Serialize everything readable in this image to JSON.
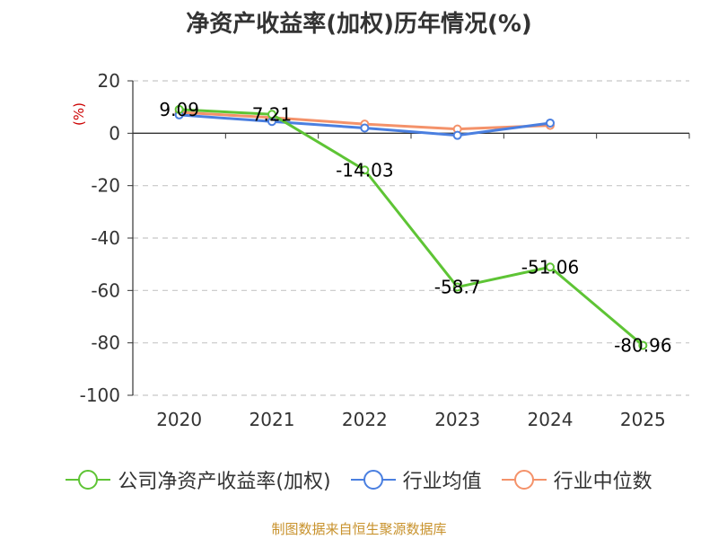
{
  "title": "净资产收益率(加权)历年情况(%)",
  "source": "制图数据来自恒生聚源数据库",
  "colors": {
    "company": "#5ec435",
    "avg": "#4a7fe0",
    "median": "#f4926a",
    "grid": "#c8c8c8",
    "axis": "#333333",
    "unit": "#cc0000",
    "source": "#c8922c"
  },
  "chart_data": {
    "type": "line",
    "title": "净资产收益率(加权)历年情况(%)",
    "ylabel": "(%)",
    "categories": [
      "2020",
      "2021",
      "2022",
      "2023",
      "2024",
      "2025"
    ],
    "ylim": [
      -100,
      20
    ],
    "yticks": [
      20,
      0,
      -20,
      -40,
      -60,
      -80,
      -100
    ],
    "grid": true,
    "legend_position": "bottom",
    "series": [
      {
        "name": "公司净资产收益率(加权)",
        "color_key": "company",
        "values": [
          9.09,
          7.21,
          -14.03,
          -58.7,
          -51.06,
          -80.96
        ],
        "labels": [
          "9.09",
          "7.21",
          "-14.03",
          "-58.7",
          "-51.06",
          "-80.96"
        ]
      },
      {
        "name": "行业均值",
        "color_key": "avg",
        "values": [
          7.0,
          4.5,
          2.0,
          -0.8,
          3.9,
          null
        ]
      },
      {
        "name": "行业中位数",
        "color_key": "median",
        "values": [
          8.0,
          6.0,
          3.5,
          1.6,
          3.0,
          null
        ]
      }
    ]
  }
}
